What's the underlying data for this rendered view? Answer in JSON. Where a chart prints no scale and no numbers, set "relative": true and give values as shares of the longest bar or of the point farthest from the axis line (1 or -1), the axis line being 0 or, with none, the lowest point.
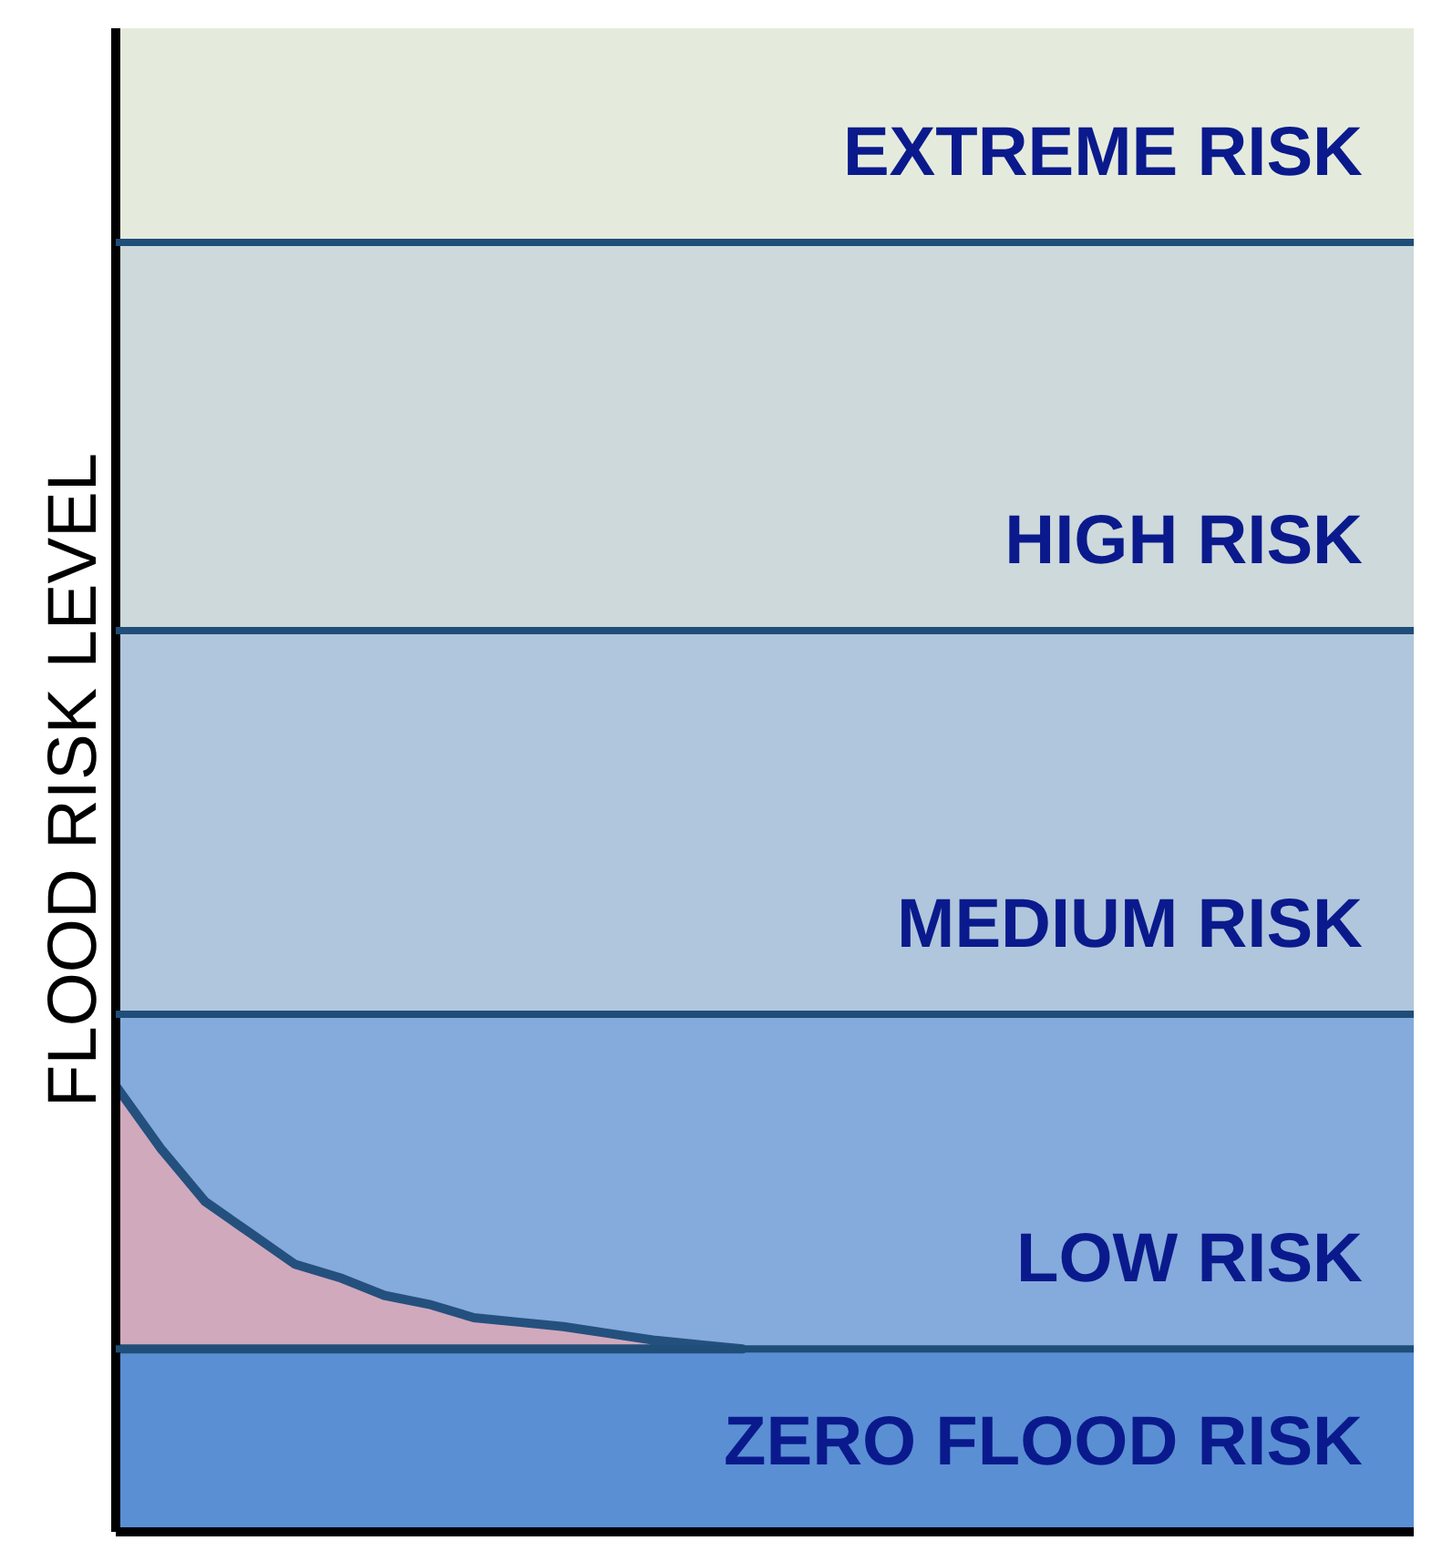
{
  "chart_data": {
    "type": "area",
    "relative": true,
    "ylabel": "FLOOD RISK LEVEL",
    "categories": [
      null,
      null,
      null,
      null,
      null,
      null,
      null,
      null,
      null,
      null,
      null,
      null,
      null,
      null,
      null,
      null,
      null,
      null,
      null,
      null,
      null,
      null,
      null,
      null,
      null,
      null,
      null,
      null,
      null,
      null
    ],
    "series": [
      {
        "color": "#d9a9b8",
        "values": [
          1.0,
          0.86,
          0.74,
          0.67,
          0.6,
          0.57,
          0.53,
          0.51,
          0.48,
          0.47,
          0.46,
          0.445,
          0.43,
          0.42,
          0.41,
          null,
          null,
          null,
          null,
          null,
          null,
          null,
          null,
          null,
          null,
          null,
          null,
          null,
          null,
          null
        ]
      }
    ],
    "bands": [
      {
        "axis": "y",
        "from": 0,
        "to": 0.41,
        "label": "ZERO FLOOD RISK",
        "color": "#5a8fd4"
      },
      {
        "axis": "y",
        "from": 0.41,
        "to": 1.16,
        "label": "LOW RISK",
        "color": "#85aadc"
      },
      {
        "axis": "y",
        "from": 1.16,
        "to": 2.02,
        "label": "MEDIUM RISK",
        "color": "#b0c6dc"
      },
      {
        "axis": "y",
        "from": 2.02,
        "to": 2.89,
        "label": "HIGH RISK",
        "color": "#cdd9da"
      },
      {
        "axis": "y",
        "from": 2.89,
        "to": 3.37,
        "label": "EXTREME RISK",
        "color": "#e5ebdc"
      }
    ],
    "ref_lines": [
      {
        "axis": "y",
        "value": 0.41,
        "color": "#1f4e79"
      },
      {
        "axis": "y",
        "value": 1.16,
        "color": "#1f4e79"
      },
      {
        "axis": "y",
        "value": 2.02,
        "color": "#1f4e79"
      },
      {
        "axis": "y",
        "value": 2.89,
        "color": "#1f4e79"
      }
    ]
  }
}
